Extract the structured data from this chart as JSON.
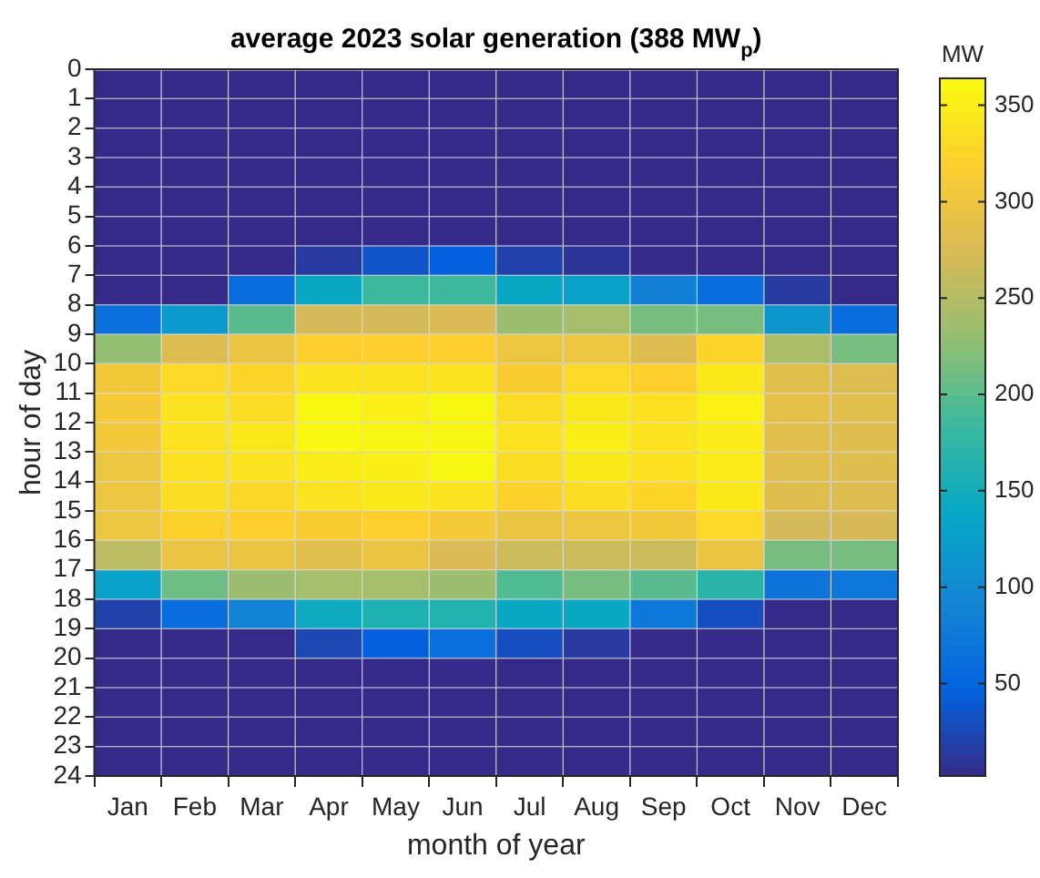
{
  "chart_data": {
    "type": "heatmap",
    "title": "average 2023 solar generation (388 MW$_{p}$)",
    "xlabel": "month of year",
    "ylabel": "hour of day",
    "clabel": "MW",
    "categories": [
      "Jan",
      "Feb",
      "Mar",
      "Apr",
      "May",
      "Jun",
      "Jul",
      "Aug",
      "Sep",
      "Oct",
      "Nov",
      "Dec"
    ],
    "ylim": [
      24,
      0
    ],
    "yticks": [
      0,
      1,
      2,
      3,
      4,
      5,
      6,
      7,
      8,
      9,
      10,
      11,
      12,
      13,
      14,
      15,
      16,
      17,
      18,
      19,
      20,
      21,
      22,
      23,
      24
    ],
    "clim": [
      2,
      364
    ],
    "cticks": [
      50,
      100,
      150,
      200,
      250,
      300,
      350
    ],
    "cells": [
      [
        2,
        2,
        2,
        2,
        2,
        2,
        2,
        2,
        2,
        2,
        2,
        2
      ],
      [
        2,
        2,
        2,
        2,
        2,
        2,
        2,
        2,
        2,
        2,
        2,
        2
      ],
      [
        2,
        2,
        2,
        2,
        2,
        2,
        2,
        2,
        2,
        2,
        2,
        2
      ],
      [
        2,
        2,
        2,
        2,
        2,
        2,
        2,
        2,
        2,
        2,
        2,
        2
      ],
      [
        2,
        2,
        2,
        2,
        2,
        2,
        2,
        2,
        2,
        2,
        2,
        2
      ],
      [
        2,
        2,
        2,
        2,
        2,
        2,
        2,
        2,
        2,
        2,
        2,
        2
      ],
      [
        2,
        2,
        2,
        15,
        35,
        45,
        20,
        10,
        2,
        2,
        2,
        2
      ],
      [
        2,
        2,
        60,
        140,
        185,
        185,
        140,
        130,
        85,
        60,
        15,
        2
      ],
      [
        65,
        120,
        200,
        270,
        270,
        275,
        235,
        240,
        215,
        215,
        115,
        60
      ],
      [
        230,
        280,
        295,
        320,
        320,
        320,
        300,
        300,
        280,
        325,
        245,
        215
      ],
      [
        305,
        330,
        325,
        340,
        340,
        340,
        315,
        330,
        320,
        345,
        285,
        280
      ],
      [
        310,
        340,
        335,
        360,
        352,
        360,
        335,
        345,
        338,
        355,
        290,
        285
      ],
      [
        305,
        340,
        345,
        360,
        358,
        358,
        340,
        352,
        340,
        350,
        285,
        282
      ],
      [
        300,
        338,
        340,
        350,
        352,
        360,
        335,
        345,
        338,
        348,
        285,
        282
      ],
      [
        300,
        335,
        328,
        340,
        345,
        340,
        322,
        335,
        325,
        345,
        282,
        280
      ],
      [
        300,
        322,
        320,
        315,
        320,
        310,
        295,
        300,
        305,
        330,
        270,
        272
      ],
      [
        255,
        295,
        295,
        285,
        295,
        275,
        265,
        265,
        265,
        295,
        215,
        215
      ],
      [
        130,
        210,
        235,
        240,
        240,
        235,
        195,
        215,
        200,
        170,
        70,
        75
      ],
      [
        20,
        60,
        90,
        145,
        160,
        165,
        140,
        140,
        75,
        30,
        2,
        2
      ],
      [
        2,
        2,
        2,
        25,
        45,
        65,
        30,
        15,
        2,
        2,
        2,
        2
      ],
      [
        2,
        2,
        2,
        2,
        2,
        2,
        2,
        2,
        2,
        2,
        2,
        2
      ],
      [
        2,
        2,
        2,
        2,
        2,
        2,
        2,
        2,
        2,
        2,
        2,
        2
      ],
      [
        2,
        2,
        2,
        2,
        2,
        2,
        2,
        2,
        2,
        2,
        2,
        2
      ],
      [
        2,
        2,
        2,
        2,
        2,
        2,
        2,
        2,
        2,
        2,
        2,
        2
      ]
    ]
  }
}
